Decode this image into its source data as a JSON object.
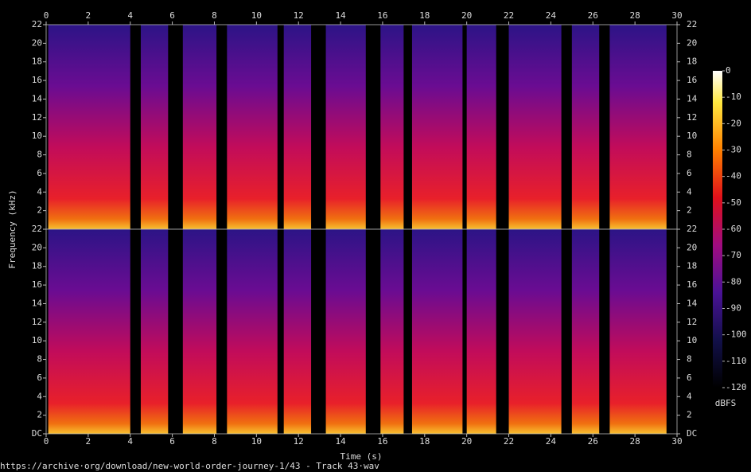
{
  "chart_data": {
    "type": "spectrogram",
    "xlabel": "Time (s)",
    "ylabel": "Frequency (kHz)",
    "xlim": [
      0,
      30
    ],
    "xticks": [
      0,
      2,
      4,
      6,
      8,
      10,
      12,
      14,
      16,
      18,
      20,
      22,
      24,
      26,
      28,
      30
    ],
    "ylim": [
      0,
      22
    ],
    "yticks": [
      {
        "value": 0,
        "label": "DC"
      },
      2,
      4,
      6,
      8,
      10,
      12,
      14,
      16,
      18,
      20,
      22
    ],
    "channels": 2,
    "segments": [
      {
        "start": 0.1,
        "end": 4.0
      },
      {
        "start": 4.5,
        "end": 5.8
      },
      {
        "start": 6.5,
        "end": 8.1
      },
      {
        "start": 8.6,
        "end": 11.0
      },
      {
        "start": 11.3,
        "end": 12.6
      },
      {
        "start": 13.3,
        "end": 15.2
      },
      {
        "start": 15.9,
        "end": 17.0
      },
      {
        "start": 17.4,
        "end": 19.8
      },
      {
        "start": 20.0,
        "end": 21.4
      },
      {
        "start": 22.0,
        "end": 24.5
      },
      {
        "start": 25.0,
        "end": 26.3
      },
      {
        "start": 26.8,
        "end": 29.5
      }
    ],
    "colorbar": {
      "label": "dBFS",
      "zlim": [
        -120,
        0
      ],
      "zticks": [
        -120,
        -110,
        -100,
        -90,
        -80,
        -70,
        -60,
        -50,
        -40,
        -30,
        -20,
        -10,
        0
      ]
    },
    "footer": "https://archive·org/download/new-world-order-journey-1/43 - Track 43·wav"
  }
}
